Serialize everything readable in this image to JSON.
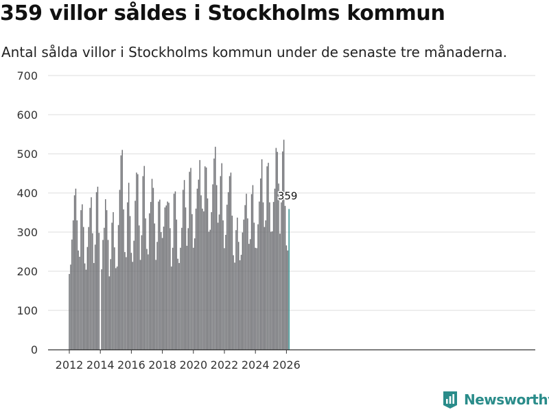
{
  "title": "359 villor såldes i Stockholms kommun",
  "subtitle": "Antal sålda villor i Stockholms kommun under de senaste tre månaderna.",
  "brand": {
    "name": "Newsworthy",
    "color": "#2a8c8a"
  },
  "colors": {
    "bar": "#6d6e72",
    "highlight": "#2a8c8a",
    "grid": "#dddddd",
    "axis": "#333333"
  },
  "chart_data": {
    "type": "bar",
    "title": "359 villor såldes i Stockholms kommun",
    "xlabel": "",
    "ylabel": "",
    "ylim": [
      0,
      700
    ],
    "yticks": [
      0,
      100,
      200,
      300,
      400,
      500,
      600,
      700
    ],
    "xticks": [
      2012,
      2014,
      2016,
      2018,
      2020,
      2022,
      2024,
      2026
    ],
    "start": {
      "year": 2012,
      "month": 1
    },
    "frequency": "monthly",
    "annotation": {
      "label": "359",
      "value": 359,
      "index": 170
    },
    "values": [
      193,
      217,
      281,
      330,
      394,
      411,
      330,
      253,
      237,
      356,
      371,
      313,
      220,
      204,
      262,
      313,
      362,
      389,
      297,
      221,
      268,
      402,
      416,
      298,
      0,
      205,
      280,
      311,
      384,
      356,
      280,
      187,
      231,
      324,
      351,
      261,
      208,
      212,
      318,
      408,
      496,
      510,
      358,
      249,
      236,
      376,
      426,
      341,
      247,
      224,
      278,
      380,
      452,
      448,
      317,
      229,
      292,
      443,
      469,
      335,
      257,
      243,
      348,
      377,
      436,
      413,
      322,
      229,
      275,
      378,
      383,
      300,
      285,
      314,
      363,
      368,
      378,
      375,
      310,
      212,
      260,
      398,
      404,
      332,
      232,
      221,
      260,
      311,
      408,
      433,
      363,
      265,
      310,
      454,
      464,
      346,
      260,
      284,
      360,
      411,
      434,
      484,
      394,
      360,
      353,
      468,
      465,
      386,
      301,
      306,
      351,
      422,
      488,
      518,
      420,
      324,
      345,
      443,
      476,
      330,
      259,
      293,
      370,
      402,
      443,
      452,
      342,
      241,
      222,
      305,
      337,
      275,
      228,
      242,
      299,
      332,
      369,
      398,
      335,
      270,
      282,
      397,
      420,
      324,
      260,
      259,
      320,
      378,
      437,
      486,
      376,
      313,
      330,
      468,
      477,
      376,
      301,
      302,
      377,
      411,
      515,
      505,
      424,
      296,
      376,
      506,
      536,
      367,
      266,
      253,
      359
    ],
    "series": [
      {
        "name": "Antal sålda villor"
      }
    ]
  }
}
